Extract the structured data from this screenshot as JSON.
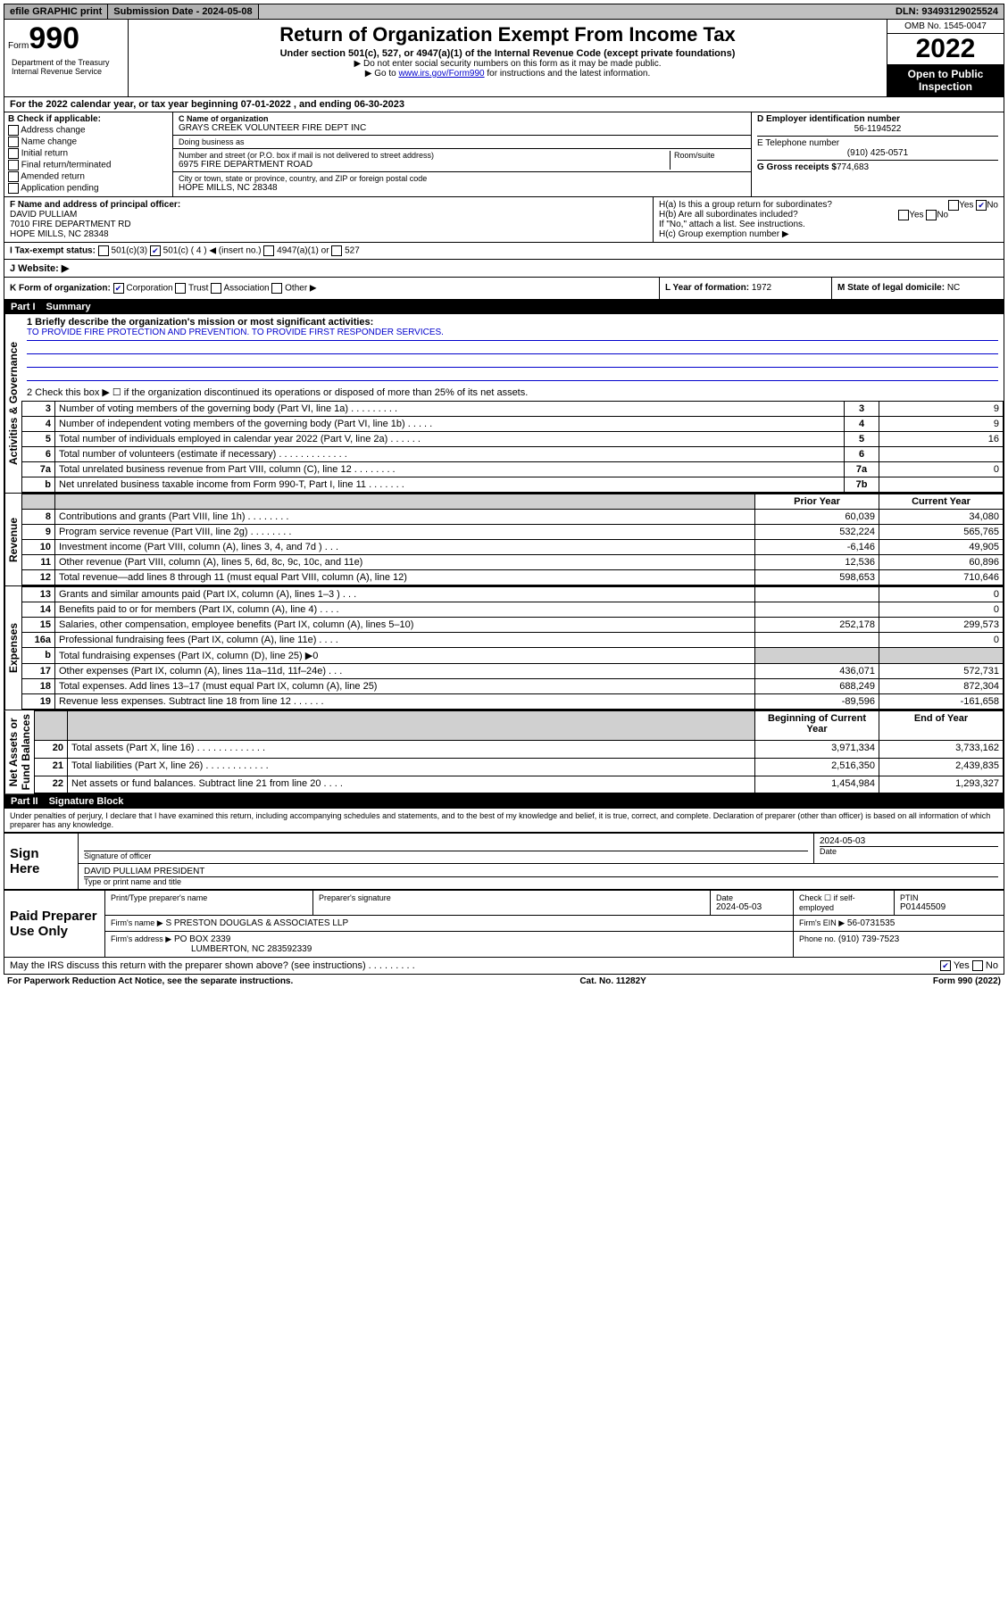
{
  "topbar": {
    "efile": "efile GRAPHIC print",
    "submission_label": "Submission Date - 2024-05-08",
    "dln": "DLN: 93493129025524"
  },
  "header": {
    "form_prefix": "Form",
    "form_number": "990",
    "title": "Return of Organization Exempt From Income Tax",
    "subtitle": "Under section 501(c), 527, or 4947(a)(1) of the Internal Revenue Code (except private foundations)",
    "note1": "▶ Do not enter social security numbers on this form as it may be made public.",
    "note2_pre": "▶ Go to ",
    "note2_link": "www.irs.gov/Form990",
    "note2_post": " for instructions and the latest information.",
    "dept": "Department of the Treasury\nInternal Revenue Service",
    "omb": "OMB No. 1545-0047",
    "year": "2022",
    "open": "Open to Public Inspection"
  },
  "calendar": "For the 2022 calendar year, or tax year beginning 07-01-2022     , and ending 06-30-2023",
  "section_b": {
    "label": "B Check if applicable:",
    "items": [
      "Address change",
      "Name change",
      "Initial return",
      "Final return/terminated",
      "Amended return",
      "Application pending"
    ]
  },
  "section_c": {
    "name_label": "C Name of organization",
    "name": "GRAYS CREEK VOLUNTEER FIRE DEPT INC",
    "dba_label": "Doing business as",
    "street_label": "Number and street (or P.O. box if mail is not delivered to street address)",
    "room_label": "Room/suite",
    "street": "6975 FIRE DEPARTMENT ROAD",
    "city_label": "City or town, state or province, country, and ZIP or foreign postal code",
    "city": "HOPE MILLS, NC  28348"
  },
  "section_d": {
    "label": "D Employer identification number",
    "ein": "56-1194522",
    "tel_label": "E Telephone number",
    "tel": "(910) 425-0571",
    "gross_label": "G Gross receipts $",
    "gross": "774,683"
  },
  "section_f": {
    "label": "F Name and address of principal officer:",
    "name": "DAVID PULLIAM",
    "street": "7010 FIRE DEPARTMENT RD",
    "city": "HOPE MILLS, NC  28348"
  },
  "section_h": {
    "a": "H(a)  Is this a group return for subordinates?",
    "a_ans": "No",
    "b": "H(b)  Are all subordinates included?",
    "b_note": "If \"No,\" attach a list. See instructions.",
    "c": "H(c)  Group exemption number ▶"
  },
  "section_i": {
    "label": "I    Tax-exempt status:",
    "opts": [
      "501(c)(3)",
      "501(c) ( 4 ) ◀ (insert no.)",
      "4947(a)(1) or",
      "527"
    ]
  },
  "section_j": "J    Website: ▶",
  "section_k": "K Form of organization:",
  "k_opts": [
    "Corporation",
    "Trust",
    "Association",
    "Other ▶"
  ],
  "section_l": {
    "label": "L Year of formation:",
    "val": "1972"
  },
  "section_m": {
    "label": "M State of legal domicile:",
    "val": "NC"
  },
  "part1": {
    "part": "Part I",
    "title": "Summary",
    "q1_label": "1   Briefly describe the organization's mission or most significant activities:",
    "q1_text": "TO PROVIDE FIRE PROTECTION AND PREVENTION. TO PROVIDE FIRST RESPONDER SERVICES.",
    "q2": "2    Check this box ▶ ☐  if the organization discontinued its operations or disposed of more than 25% of its net assets.",
    "governance_rows": [
      {
        "n": "3",
        "label": "Number of voting members of the governing body (Part VI, line 1a)  .    .    .    .    .    .    .    .    .",
        "box": "3",
        "val": "9"
      },
      {
        "n": "4",
        "label": "Number of independent voting members of the governing body (Part VI, line 1b)  .    .    .    .    .",
        "box": "4",
        "val": "9"
      },
      {
        "n": "5",
        "label": "Total number of individuals employed in calendar year 2022 (Part V, line 2a)   .    .    .    .    .    .",
        "box": "5",
        "val": "16"
      },
      {
        "n": "6",
        "label": "Total number of volunteers (estimate if necessary)   .    .    .    .    .    .    .    .    .    .    .    .    .",
        "box": "6",
        "val": ""
      },
      {
        "n": "7a",
        "label": "Total unrelated business revenue from Part VIII, column (C), line 12  .    .    .    .    .    .    .    .",
        "box": "7a",
        "val": "0"
      },
      {
        "n": "b",
        "label": "Net unrelated business taxable income from Form 990-T, Part I, line 11   .    .    .    .    .    .    .",
        "box": "7b",
        "val": ""
      }
    ],
    "col_headers": {
      "prior": "Prior Year",
      "current": "Current Year"
    },
    "revenue_rows": [
      {
        "n": "8",
        "label": "Contributions and grants (Part VIII, line 1h)   .    .    .    .    .    .    .    .",
        "p": "60,039",
        "c": "34,080"
      },
      {
        "n": "9",
        "label": "Program service revenue (Part VIII, line 2g)   .    .    .    .    .    .    .    .",
        "p": "532,224",
        "c": "565,765"
      },
      {
        "n": "10",
        "label": "Investment income (Part VIII, column (A), lines 3, 4, and 7d )   .    .    .",
        "p": "-6,146",
        "c": "49,905"
      },
      {
        "n": "11",
        "label": "Other revenue (Part VIII, column (A), lines 5, 6d, 8c, 9c, 10c, and 11e)",
        "p": "12,536",
        "c": "60,896"
      },
      {
        "n": "12",
        "label": "Total revenue—add lines 8 through 11 (must equal Part VIII, column (A), line 12)",
        "p": "598,653",
        "c": "710,646"
      }
    ],
    "expense_rows": [
      {
        "n": "13",
        "label": "Grants and similar amounts paid (Part IX, column (A), lines 1–3 )   .    .    .",
        "p": "",
        "c": "0"
      },
      {
        "n": "14",
        "label": "Benefits paid to or for members (Part IX, column (A), line 4)   .    .    .    .",
        "p": "",
        "c": "0"
      },
      {
        "n": "15",
        "label": "Salaries, other compensation, employee benefits (Part IX, column (A), lines 5–10)",
        "p": "252,178",
        "c": "299,573"
      },
      {
        "n": "16a",
        "label": "Professional fundraising fees (Part IX, column (A), line 11e)   .    .    .    .",
        "p": "",
        "c": "0"
      },
      {
        "n": "b",
        "label": "Total fundraising expenses (Part IX, column (D), line 25) ▶0",
        "p": "shade",
        "c": "shade"
      },
      {
        "n": "17",
        "label": "Other expenses (Part IX, column (A), lines 11a–11d, 11f–24e)  .    .    .",
        "p": "436,071",
        "c": "572,731"
      },
      {
        "n": "18",
        "label": "Total expenses. Add lines 13–17 (must equal Part IX, column (A), line 25)",
        "p": "688,249",
        "c": "872,304"
      },
      {
        "n": "19",
        "label": "Revenue less expenses. Subtract line 18 from line 12  .    .    .    .    .    .",
        "p": "-89,596",
        "c": "-161,658"
      }
    ],
    "netassets_headers": {
      "begin": "Beginning of Current Year",
      "end": "End of Year"
    },
    "netassets_rows": [
      {
        "n": "20",
        "label": "Total assets (Part X, line 16)  .    .    .    .    .    .    .    .    .    .    .    .    .",
        "p": "3,971,334",
        "c": "3,733,162"
      },
      {
        "n": "21",
        "label": "Total liabilities (Part X, line 26)  .    .    .    .    .    .    .    .    .    .    .    .",
        "p": "2,516,350",
        "c": "2,439,835"
      },
      {
        "n": "22",
        "label": "Net assets or fund balances. Subtract line 21 from line 20  .    .    .    .",
        "p": "1,454,984",
        "c": "1,293,327"
      }
    ]
  },
  "part2": {
    "part": "Part II",
    "title": "Signature Block",
    "perjury": "Under penalties of perjury, I declare that I have examined this return, including accompanying schedules and statements, and to the best of my knowledge and belief, it is true, correct, and complete. Declaration of preparer (other than officer) is based on all information of which preparer has any knowledge.",
    "sign_here": "Sign Here",
    "sig_officer": "Signature of officer",
    "sig_date": "2024-05-03",
    "date_label": "Date",
    "officer_name": "DAVID PULLIAM  PRESIDENT",
    "officer_sub": "Type or print name and title",
    "paid": "Paid Preparer Use Only",
    "prep_name_label": "Print/Type preparer's name",
    "prep_sig_label": "Preparer's signature",
    "prep_date_label": "Date",
    "prep_date": "2024-05-03",
    "check_label": "Check ☐ if self-employed",
    "ptin_label": "PTIN",
    "ptin": "P01445509",
    "firm_name_label": "Firm's name      ▶",
    "firm_name": "S PRESTON DOUGLAS & ASSOCIATES LLP",
    "firm_ein_label": "Firm's EIN ▶",
    "firm_ein": "56-0731535",
    "firm_addr_label": "Firm's address ▶",
    "firm_addr1": "PO BOX 2339",
    "firm_addr2": "LUMBERTON, NC  283592339",
    "phone_label": "Phone no.",
    "phone": "(910) 739-7523",
    "discuss": "May the IRS discuss this return with the preparer shown above? (see instructions)   .    .    .    .    .    .    .    .    .",
    "discuss_ans": "Yes"
  },
  "footer": {
    "left": "For Paperwork Reduction Act Notice, see the separate instructions.",
    "center": "Cat. No. 11282Y",
    "right": "Form 990 (2022)"
  },
  "vert_labels": {
    "gov": "Activities & Governance",
    "rev": "Revenue",
    "exp": "Expenses",
    "net": "Net Assets or\nFund Balances"
  }
}
